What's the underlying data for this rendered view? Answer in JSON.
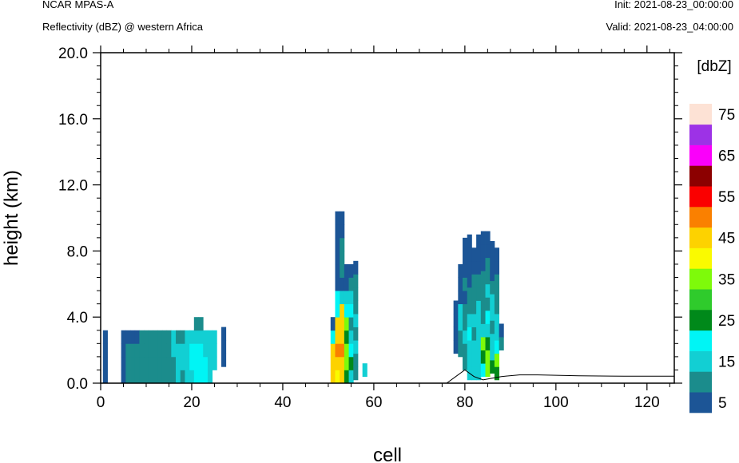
{
  "header": {
    "model": "NCAR MPAS-A",
    "field": "Reflectivity (dBZ) @ western Africa",
    "init": "Init: 2021-08-23_00:00:00",
    "valid": "Valid: 2021-08-23_04:00:00"
  },
  "chart_data": {
    "type": "heatmap",
    "title": "Reflectivity (dBZ) @ western Africa",
    "xlabel": "cell",
    "ylabel": "height (km)",
    "xlim": [
      0,
      126
    ],
    "ylim": [
      0,
      20
    ],
    "x_ticks": [
      0,
      20,
      40,
      60,
      80,
      100,
      120
    ],
    "x_tick_labels": [
      "0",
      "20",
      "40",
      "60",
      "80",
      "100",
      "120"
    ],
    "y_ticks": [
      0,
      4,
      8,
      12,
      16,
      20
    ],
    "y_tick_labels": [
      "0.0",
      "4.0",
      "8.0",
      "12.0",
      "16.0",
      "20.0"
    ],
    "colorbar": {
      "title": "[dbZ]",
      "levels": [
        5,
        10,
        15,
        20,
        25,
        30,
        35,
        40,
        45,
        50,
        55,
        60,
        65,
        70,
        75
      ],
      "labels": [
        "5",
        "15",
        "25",
        "35",
        "45",
        "55",
        "65",
        "75"
      ],
      "colors": [
        "#1c5596",
        "#1b8c8c",
        "#12cfd3",
        "#00f5f5",
        "#00891a",
        "#2fcb2c",
        "#7efa0a",
        "#fafa00",
        "#fdd200",
        "#fa8000",
        "#fa0000",
        "#8c0000",
        "#fa00fa",
        "#9d32e6",
        "#fde2d5"
      ]
    },
    "cells_grid": {
      "dx": 1,
      "dz_km": 0.8,
      "note": "column base km, columns of dBZ values from the base upward"
    },
    "columns": [
      {
        "x": 1,
        "base": 0,
        "v": [
          5,
          5,
          5,
          5
        ]
      },
      {
        "x": 5,
        "base": 0,
        "v": [
          5,
          5,
          5,
          5
        ]
      },
      {
        "x": 6,
        "base": 0,
        "v": [
          10,
          10,
          10,
          5
        ]
      },
      {
        "x": 7,
        "base": 0,
        "v": [
          10,
          10,
          10,
          5
        ]
      },
      {
        "x": 8,
        "base": 0,
        "v": [
          10,
          10,
          10,
          5
        ]
      },
      {
        "x": 9,
        "base": 0,
        "v": [
          10,
          10,
          10,
          10
        ]
      },
      {
        "x": 10,
        "base": 0,
        "v": [
          10,
          10,
          10,
          10
        ]
      },
      {
        "x": 11,
        "base": 0,
        "v": [
          10,
          10,
          10,
          10
        ]
      },
      {
        "x": 12,
        "base": 0,
        "v": [
          10,
          10,
          10,
          10
        ]
      },
      {
        "x": 13,
        "base": 0,
        "v": [
          10,
          10,
          10,
          10
        ]
      },
      {
        "x": 14,
        "base": 0,
        "v": [
          10,
          10,
          10,
          10
        ]
      },
      {
        "x": 15,
        "base": 0,
        "v": [
          10,
          10,
          10,
          10
        ]
      },
      {
        "x": 16,
        "base": 0,
        "v": [
          10,
          10,
          15,
          15
        ]
      },
      {
        "x": 17,
        "base": 0,
        "v": [
          15,
          15,
          15,
          10
        ]
      },
      {
        "x": 18,
        "base": 0,
        "v": [
          10,
          15,
          15,
          10
        ]
      },
      {
        "x": 19,
        "base": 0,
        "v": [
          15,
          15,
          15,
          15
        ]
      },
      {
        "x": 20,
        "base": 0,
        "v": [
          15,
          20,
          20,
          15
        ]
      },
      {
        "x": 21,
        "base": 0,
        "v": [
          20,
          20,
          20,
          15,
          10
        ]
      },
      {
        "x": 22,
        "base": 0,
        "v": [
          20,
          20,
          20,
          15,
          10
        ]
      },
      {
        "x": 23,
        "base": 0,
        "v": [
          20,
          20,
          15,
          15
        ]
      },
      {
        "x": 24,
        "base": 0,
        "v": [
          15,
          15,
          15,
          15
        ]
      },
      {
        "x": 25,
        "base": 0.8,
        "v": [
          15,
          15,
          15
        ]
      },
      {
        "x": 27,
        "base": 1.0,
        "v": [
          5,
          5,
          5
        ]
      },
      {
        "x": 51,
        "base": 0,
        "v": [
          45,
          45,
          45,
          20,
          5
        ]
      },
      {
        "x": 52,
        "base": 0,
        "v": [
          40,
          45,
          50,
          45,
          45,
          20,
          20,
          5,
          5,
          5,
          5,
          5,
          5
        ]
      },
      {
        "x": 53,
        "base": 0,
        "v": [
          45,
          45,
          50,
          45,
          45,
          45,
          15,
          5,
          10,
          10,
          10,
          5,
          5
        ]
      },
      {
        "x": 54,
        "base": 0,
        "v": [
          25,
          35,
          35,
          25,
          35,
          20,
          15,
          5,
          5
        ]
      },
      {
        "x": 55,
        "base": 0,
        "v": [
          15,
          25,
          20,
          15,
          10,
          20,
          15,
          10,
          5
        ]
      },
      {
        "x": 56,
        "base": 0.2,
        "v": [
          10,
          10,
          15,
          10,
          15,
          10,
          10,
          10,
          5
        ]
      },
      {
        "x": 58,
        "base": 0.4,
        "v": [
          15
        ]
      },
      {
        "x": 78,
        "base": 1.8,
        "v": [
          5,
          5,
          5,
          5
        ]
      },
      {
        "x": 79,
        "base": 1.6,
        "v": [
          10,
          10,
          15,
          15,
          5,
          5,
          5
        ]
      },
      {
        "x": 80,
        "base": 0.8,
        "v": [
          10,
          10,
          15,
          10,
          10,
          5,
          10,
          5,
          5,
          5
        ]
      },
      {
        "x": 81,
        "base": 0.2,
        "v": [
          15,
          15,
          15,
          20,
          15,
          10,
          10,
          5,
          5,
          5,
          5
        ]
      },
      {
        "x": 82,
        "base": 0.2,
        "v": [
          15,
          15,
          15,
          10,
          15,
          10,
          10,
          10,
          5,
          5
        ]
      },
      {
        "x": 83,
        "base": 0.2,
        "v": [
          15,
          15,
          15,
          15,
          15,
          15,
          10,
          10,
          5,
          5,
          5
        ]
      },
      {
        "x": 84,
        "base": 0.4,
        "v": [
          20,
          25,
          35,
          15,
          10,
          10,
          10,
          10,
          5,
          5,
          5
        ]
      },
      {
        "x": 85,
        "base": 0.4,
        "v": [
          35,
          35,
          25,
          15,
          20,
          10,
          15,
          10,
          10,
          5,
          5
        ]
      },
      {
        "x": 86,
        "base": 0.6,
        "v": [
          25,
          15,
          15,
          10,
          15,
          15,
          10,
          5,
          5,
          5
        ]
      },
      {
        "x": 87,
        "base": 0.2,
        "v": [
          25,
          35,
          20,
          15,
          15,
          10,
          10,
          10,
          5,
          5
        ]
      },
      {
        "x": 88,
        "base": 2.0,
        "v": [
          10,
          5
        ]
      }
    ],
    "terrain_km": [
      [
        0,
        0
      ],
      [
        76,
        0
      ],
      [
        78,
        0.4
      ],
      [
        80,
        0.8
      ],
      [
        82,
        0.4
      ],
      [
        84,
        0.2
      ],
      [
        86,
        0.3
      ],
      [
        88,
        0.4
      ],
      [
        92,
        0.5
      ],
      [
        96,
        0.5
      ],
      [
        105,
        0.45
      ],
      [
        115,
        0.42
      ],
      [
        126,
        0.42
      ]
    ]
  }
}
